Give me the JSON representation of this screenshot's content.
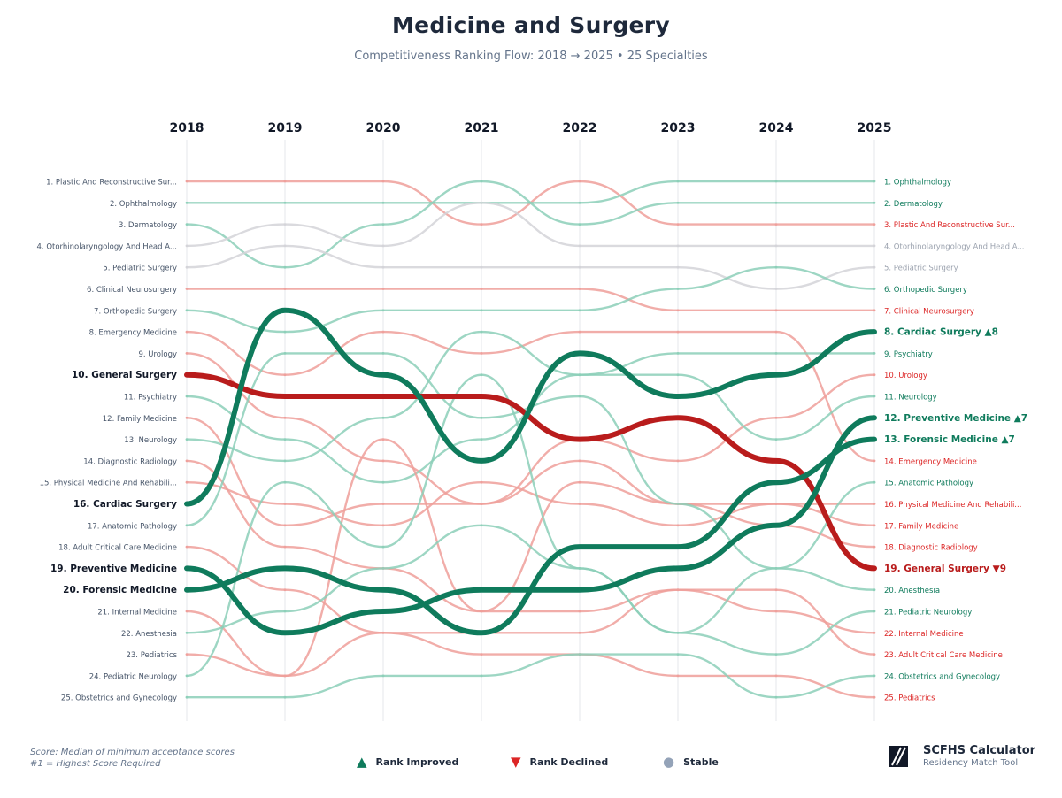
{
  "header": {
    "title": "Medicine and Surgery",
    "subtitle": "Competitiveness Ranking Flow: 2018 → 2025  •  25 Specialties"
  },
  "colors": {
    "improved": "#0f7b5c",
    "declined": "#b91c1c",
    "improved_light": "#8ccfb8",
    "declined_light": "#ee9f9a",
    "stable_light": "#d4d4d8",
    "stable_symbol": "#94a3b8"
  },
  "chart_data": {
    "type": "bump",
    "title": "Medicine and Surgery",
    "years": [
      "2018",
      "2019",
      "2020",
      "2021",
      "2022",
      "2023",
      "2024",
      "2025"
    ],
    "rank_range": [
      1,
      25
    ],
    "left_labels": [
      "1. Plastic And Reconstructive Sur...",
      "2. Ophthalmology",
      "3. Dermatology",
      "4. Otorhinolaryngology And Head A...",
      "5. Pediatric Surgery",
      "6. Clinical Neurosurgery",
      "7. Orthopedic Surgery",
      "8. Emergency Medicine",
      "9. Urology",
      "10. General Surgery",
      "11. Psychiatry",
      "12. Family Medicine",
      "13. Neurology",
      "14. Diagnostic Radiology",
      "15. Physical Medicine And Rehabili...",
      "16. Cardiac Surgery",
      "17. Anatomic Pathology",
      "18. Adult Critical Care Medicine",
      "19. Preventive Medicine",
      "20. Forensic Medicine",
      "21. Internal Medicine",
      "22. Anesthesia",
      "23. Pediatrics",
      "24. Pediatric Neurology",
      "25. Obstetrics and Gynecology"
    ],
    "right_labels": [
      "1. Ophthalmology",
      "2. Dermatology",
      "3. Plastic And Reconstructive Sur...",
      "4. Otorhinolaryngology And Head A...",
      "5. Pediatric Surgery",
      "6. Orthopedic Surgery",
      "7. Clinical Neurosurgery",
      "8. Cardiac Surgery ▲8",
      "9. Psychiatry",
      "10. Urology",
      "11. Neurology",
      "12. Preventive Medicine ▲7",
      "13. Forensic Medicine ▲7",
      "14. Emergency Medicine",
      "15. Anatomic Pathology",
      "16. Physical Medicine And Rehabili...",
      "17. Family Medicine",
      "18. Diagnostic Radiology",
      "19. General Surgery ▼9",
      "20. Anesthesia",
      "21. Pediatric Neurology",
      "22. Internal Medicine",
      "23. Adult Critical Care Medicine",
      "24. Obstetrics and Gynecology",
      "25. Pediatrics"
    ],
    "series": [
      {
        "name": "Plastic And Reconstructive Surgery",
        "ranks": [
          1,
          1,
          1,
          3,
          1,
          3,
          3,
          3
        ],
        "trend": "declined",
        "highlight": false
      },
      {
        "name": "Ophthalmology",
        "ranks": [
          2,
          2,
          2,
          2,
          2,
          1,
          1,
          1
        ],
        "trend": "improved",
        "highlight": false
      },
      {
        "name": "Dermatology",
        "ranks": [
          3,
          5,
          3,
          1,
          3,
          2,
          2,
          2
        ],
        "trend": "improved",
        "highlight": false
      },
      {
        "name": "Otorhinolaryngology And Head And Neck Surgery",
        "ranks": [
          4,
          3,
          4,
          2,
          4,
          4,
          4,
          4
        ],
        "trend": "stable",
        "highlight": false
      },
      {
        "name": "Pediatric Surgery",
        "ranks": [
          5,
          4,
          5,
          5,
          5,
          5,
          6,
          5
        ],
        "trend": "stable",
        "highlight": false
      },
      {
        "name": "Clinical Neurosurgery",
        "ranks": [
          6,
          6,
          6,
          6,
          6,
          7,
          7,
          7
        ],
        "trend": "declined",
        "highlight": false
      },
      {
        "name": "Orthopedic Surgery",
        "ranks": [
          7,
          8,
          7,
          7,
          7,
          6,
          5,
          6
        ],
        "trend": "improved",
        "highlight": false
      },
      {
        "name": "Emergency Medicine",
        "ranks": [
          8,
          10,
          8,
          9,
          8,
          8,
          8,
          14
        ],
        "trend": "declined",
        "highlight": false
      },
      {
        "name": "Urology",
        "ranks": [
          9,
          12,
          14,
          16,
          13,
          14,
          12,
          10
        ],
        "trend": "declined",
        "highlight": false
      },
      {
        "name": "General Surgery",
        "ranks": [
          10,
          11,
          11,
          11,
          13,
          12,
          14,
          19
        ],
        "trend": "declined",
        "highlight": true
      },
      {
        "name": "Psychiatry",
        "ranks": [
          11,
          13,
          15,
          13,
          10,
          9,
          9,
          9
        ],
        "trend": "improved",
        "highlight": false
      },
      {
        "name": "Family Medicine",
        "ranks": [
          12,
          17,
          16,
          16,
          14,
          16,
          16,
          17
        ],
        "trend": "declined",
        "highlight": false
      },
      {
        "name": "Neurology",
        "ranks": [
          13,
          14,
          12,
          8,
          10,
          10,
          13,
          11
        ],
        "trend": "improved",
        "highlight": false
      },
      {
        "name": "Diagnostic Radiology",
        "ranks": [
          14,
          18,
          19,
          21,
          15,
          16,
          17,
          18
        ],
        "trend": "declined",
        "highlight": false
      },
      {
        "name": "Physical Medicine And Rehabilitation",
        "ranks": [
          15,
          16,
          17,
          15,
          16,
          17,
          16,
          16
        ],
        "trend": "declined",
        "highlight": false
      },
      {
        "name": "Cardiac Surgery",
        "ranks": [
          16,
          7,
          10,
          14,
          9,
          11,
          10,
          8
        ],
        "trend": "improved",
        "highlight": true
      },
      {
        "name": "Anatomic Pathology",
        "ranks": [
          17,
          9,
          9,
          12,
          11,
          16,
          19,
          15
        ],
        "trend": "improved",
        "highlight": false
      },
      {
        "name": "Adult Critical Care Medicine",
        "ranks": [
          18,
          20,
          22,
          22,
          22,
          20,
          20,
          23
        ],
        "trend": "declined",
        "highlight": false
      },
      {
        "name": "Preventive Medicine",
        "ranks": [
          19,
          22,
          21,
          20,
          20,
          19,
          17,
          12
        ],
        "trend": "improved",
        "highlight": true
      },
      {
        "name": "Forensic Medicine",
        "ranks": [
          20,
          19,
          20,
          22,
          18,
          18,
          15,
          13
        ],
        "trend": "improved",
        "highlight": true
      },
      {
        "name": "Internal Medicine",
        "ranks": [
          21,
          24,
          13,
          21,
          21,
          20,
          21,
          22
        ],
        "trend": "declined",
        "highlight": false
      },
      {
        "name": "Anesthesia",
        "ranks": [
          22,
          21,
          19,
          17,
          19,
          22,
          19,
          20
        ],
        "trend": "improved",
        "highlight": false
      },
      {
        "name": "Pediatrics",
        "ranks": [
          23,
          24,
          22,
          23,
          23,
          24,
          24,
          25
        ],
        "trend": "declined",
        "highlight": false
      },
      {
        "name": "Pediatric Neurology",
        "ranks": [
          24,
          15,
          18,
          10,
          19,
          22,
          23,
          21
        ],
        "trend": "improved",
        "highlight": false
      },
      {
        "name": "Obstetrics and Gynecology",
        "ranks": [
          25,
          25,
          24,
          24,
          23,
          23,
          25,
          24
        ],
        "trend": "improved",
        "highlight": false
      }
    ]
  },
  "footnote": {
    "line1": "Score: Median of minimum acceptance scores",
    "line2": "#1 = Highest Score Required"
  },
  "legend": {
    "improved": {
      "symbol": "▲",
      "label": "Rank Improved"
    },
    "declined": {
      "symbol": "▼",
      "label": "Rank Declined"
    },
    "stable": {
      "symbol": "●",
      "label": "Stable"
    }
  },
  "brand": {
    "icon": "diagonal-stripes-logo-icon",
    "name": "SCFHS Calculator",
    "tagline": "Residency Match Tool"
  }
}
